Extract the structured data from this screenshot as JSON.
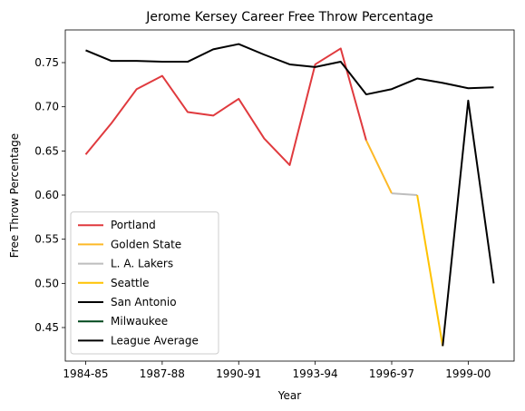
{
  "chart_data": {
    "type": "line",
    "title": "Jerome Kersey Career Free Throw Percentage",
    "xlabel": "Year",
    "ylabel": "Free Throw Percentage",
    "x_tick_labels": [
      "1984-85",
      "1987-88",
      "1990-91",
      "1993-94",
      "1996-97",
      "1999-00"
    ],
    "y_tick_labels": [
      "0.45",
      "0.50",
      "0.55",
      "0.60",
      "0.65",
      "0.70",
      "0.75"
    ],
    "ylim": [
      0.412,
      0.787
    ],
    "grid": false,
    "legend_position": "lower-left",
    "seasons": [
      "1984-85",
      "1985-86",
      "1986-87",
      "1987-88",
      "1988-89",
      "1989-90",
      "1990-91",
      "1991-92",
      "1992-93",
      "1993-94",
      "1994-95",
      "1995-96",
      "1996-97",
      "1997-98",
      "1998-99",
      "1999-00",
      "2000-01"
    ],
    "series": [
      {
        "name": "Portland",
        "color": "#e03a3e",
        "start_index": 0,
        "values": [
          0.646,
          0.681,
          0.72,
          0.735,
          0.694,
          0.69,
          0.709,
          0.664,
          0.634,
          0.748,
          0.766,
          0.662
        ]
      },
      {
        "name": "Golden State",
        "color": "#fdb927",
        "start_index": 11,
        "values": [
          0.662,
          0.602
        ]
      },
      {
        "name": "L. A. Lakers",
        "color": "#bebebe",
        "start_index": 12,
        "values": [
          0.602,
          0.6
        ]
      },
      {
        "name": "Seattle",
        "color": "#ffc200",
        "start_index": 13,
        "values": [
          0.6,
          0.429
        ]
      },
      {
        "name": "San Antonio",
        "color": "#000000",
        "start_index": 14,
        "values": [
          0.429,
          0.707,
          0.5
        ]
      },
      {
        "name": "Milwaukee",
        "color": "#00471b",
        "start_index": 16,
        "values": [
          0.5
        ]
      },
      {
        "name": "League Average",
        "color": "#000000",
        "start_index": 0,
        "values": [
          0.764,
          0.752,
          0.752,
          0.751,
          0.751,
          0.765,
          0.771,
          0.759,
          0.748,
          0.745,
          0.751,
          0.714,
          0.72,
          0.732,
          0.727,
          0.721,
          0.722
        ]
      }
    ]
  }
}
